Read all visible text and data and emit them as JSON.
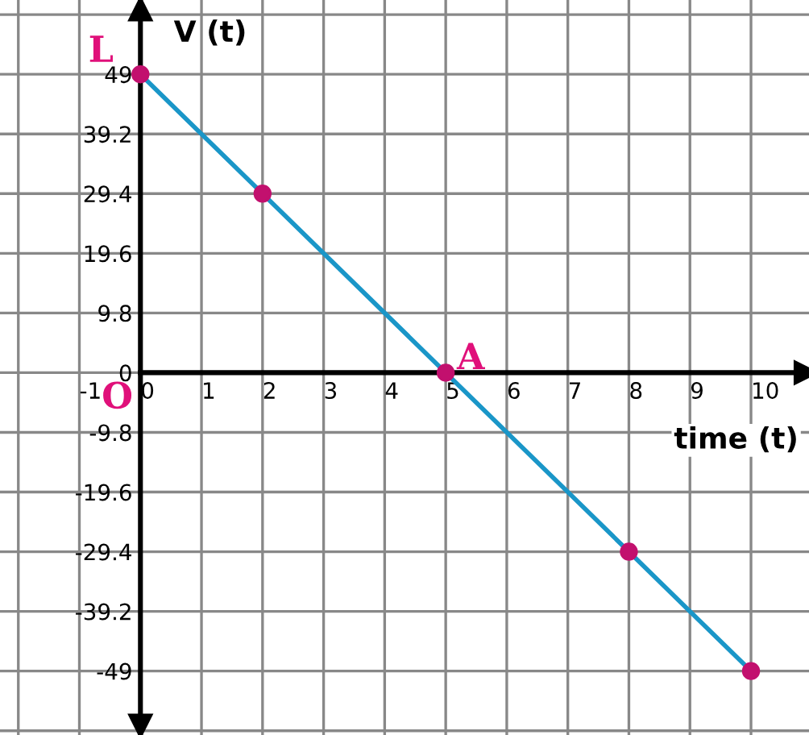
{
  "chart_data": {
    "type": "line",
    "xlabel": "time (t)",
    "ylabel": "V (t)",
    "x": [
      0,
      2,
      5,
      8,
      10
    ],
    "series": [
      {
        "color": "#1a96c8",
        "values": [
          49,
          29.4,
          0,
          -29.4,
          -49
        ]
      },
      {
        "type": "scatter",
        "color": "#c2106e",
        "values": [
          49,
          29.4,
          0,
          -29.4,
          -49
        ],
        "marker": "circle"
      }
    ],
    "line_style": "solid",
    "xlim": [
      -2.3,
      10.95
    ],
    "ylim": [
      -59.5,
      61.2
    ],
    "xticks": [
      {
        "value": -2,
        "label": null
      },
      -1,
      0,
      1,
      2,
      3,
      4,
      5,
      6,
      7,
      8,
      9,
      10
    ],
    "yticks": [
      {
        "value": -58.8,
        "label": null
      },
      -49,
      -39.2,
      -29.4,
      -19.6,
      -9.8,
      0,
      9.8,
      19.6,
      29.4,
      39.2,
      49,
      {
        "value": 58.8,
        "label": null
      }
    ],
    "grid": true,
    "legend": false,
    "annotations": [
      {
        "text": "L",
        "x": 0,
        "y": 49
      },
      "O",
      {
        "text": "A",
        "x": 5,
        "y": 0
      }
    ]
  }
}
